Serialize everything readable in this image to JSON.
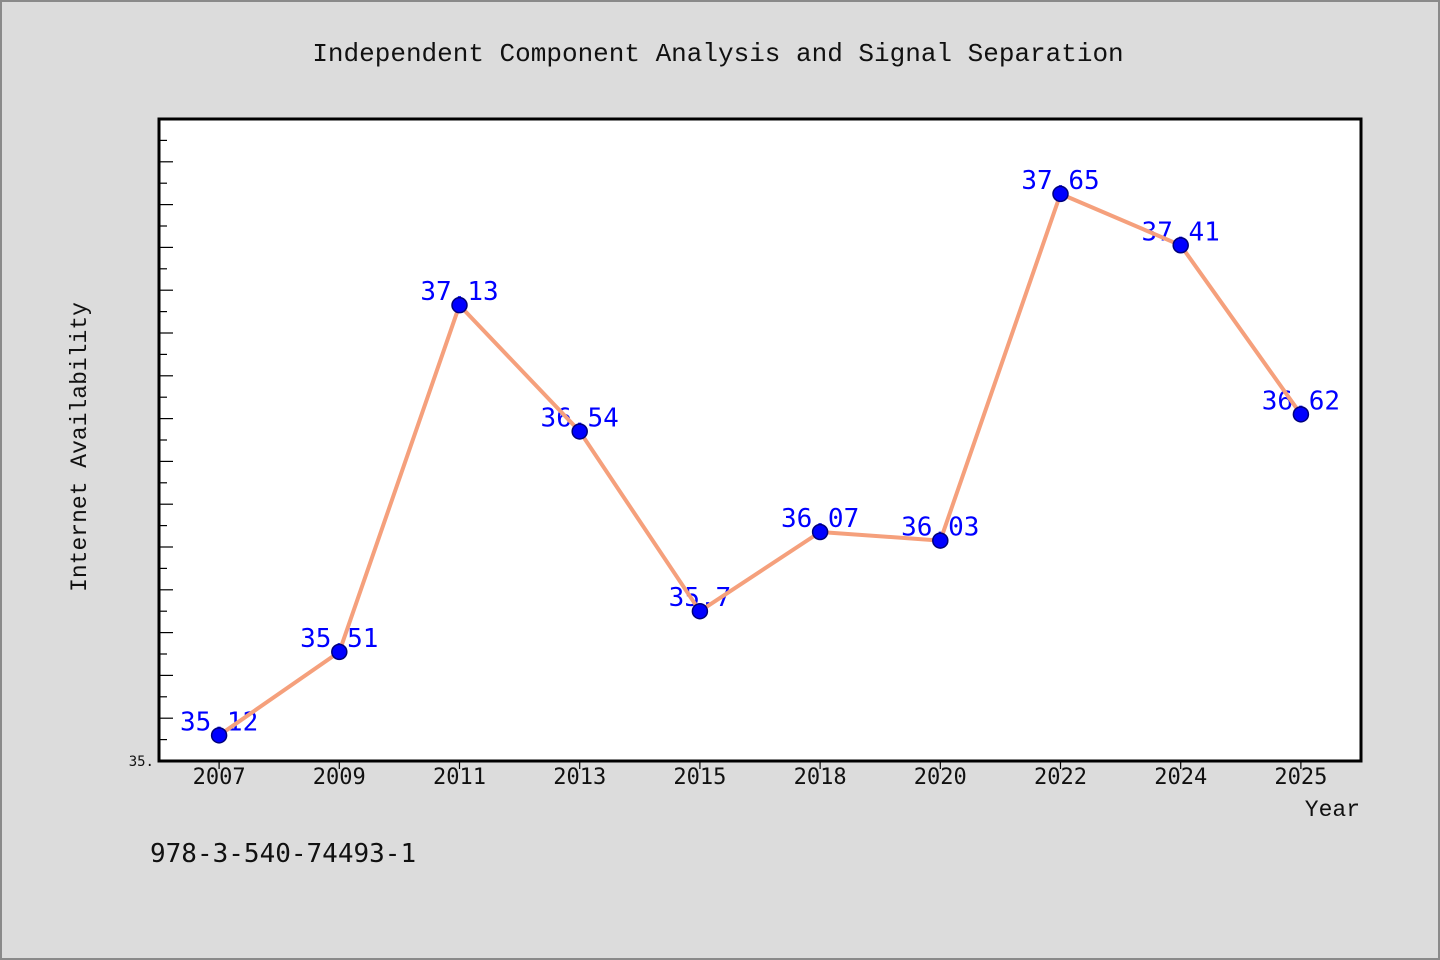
{
  "chart_data": {
    "type": "line",
    "title": "Independent Component Analysis and Signal Separation",
    "xlabel": "Year",
    "ylabel": "Internet Availability",
    "categories": [
      "2007",
      "2009",
      "2011",
      "2013",
      "2015",
      "2018",
      "2020",
      "2022",
      "2024",
      "2025"
    ],
    "series": [
      {
        "values": [
          35.12,
          35.51,
          37.13,
          36.54,
          35.7,
          36.07,
          36.03,
          37.65,
          37.41,
          36.62
        ],
        "data_labels_shown": true
      }
    ],
    "ylim": [
      35,
      38
    ],
    "y_tick_labels": [
      "35."
    ],
    "y_ticks": {
      "minor_step": 0.1,
      "major_step": 0.2
    },
    "grid": false,
    "legend": "none",
    "colors": {
      "background": "#dcdcdc",
      "plot_background": "#ffffff",
      "line": "#f5a07c",
      "marker": "#0000ff",
      "marker_edge": "#00007a",
      "data_label": "#0000ff"
    }
  },
  "footer": {
    "isbn": "978-3-540-74493-1"
  }
}
